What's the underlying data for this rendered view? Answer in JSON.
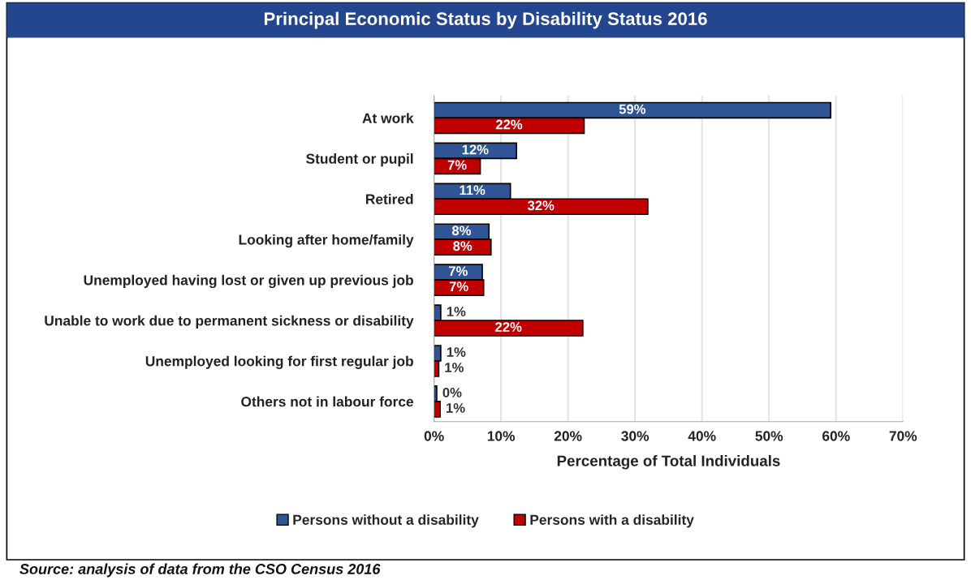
{
  "chart_data": {
    "type": "bar",
    "orientation": "horizontal",
    "title": "Principal Economic Status by Disability Status 2016",
    "xlabel": "Percentage of Total Individuals",
    "categories": [
      "At work",
      "Student or pupil",
      "Retired",
      "Looking after home/family",
      "Unemployed having lost or given up previous job",
      "Unable to work due to permanent sickness or disability",
      "Unemployed looking for first regular job",
      "Others not in labour force"
    ],
    "series": [
      {
        "name": "Persons without a disability",
        "color": "#2f5597",
        "values": [
          59.2,
          12.3,
          11.4,
          8.2,
          7.2,
          1.0,
          1.0,
          0.4
        ],
        "value_labels": [
          "59%",
          "12%",
          "11%",
          "8%",
          "7%",
          "1%",
          "1%",
          "0%"
        ]
      },
      {
        "name": "Persons with a disability",
        "color": "#c00000",
        "values": [
          22.4,
          6.9,
          31.9,
          8.5,
          7.4,
          22.2,
          0.7,
          0.9
        ],
        "value_labels": [
          "22%",
          "7%",
          "32%",
          "8%",
          "7%",
          "22%",
          "1%",
          "1%"
        ]
      }
    ],
    "xlim": [
      0,
      70
    ],
    "xticks": [
      {
        "value": 0,
        "label": "0%"
      },
      {
        "value": 10,
        "label": "10%"
      },
      {
        "value": 20,
        "label": "20%"
      },
      {
        "value": 30,
        "label": "30%"
      },
      {
        "value": 40,
        "label": "40%"
      },
      {
        "value": 50,
        "label": "50%"
      },
      {
        "value": 60,
        "label": "60%"
      },
      {
        "value": 70,
        "label": "70%"
      }
    ],
    "grid": "x",
    "legend": "bottom",
    "annotations": [
      "Source: analysis of data from the CSO Census 2016"
    ]
  }
}
